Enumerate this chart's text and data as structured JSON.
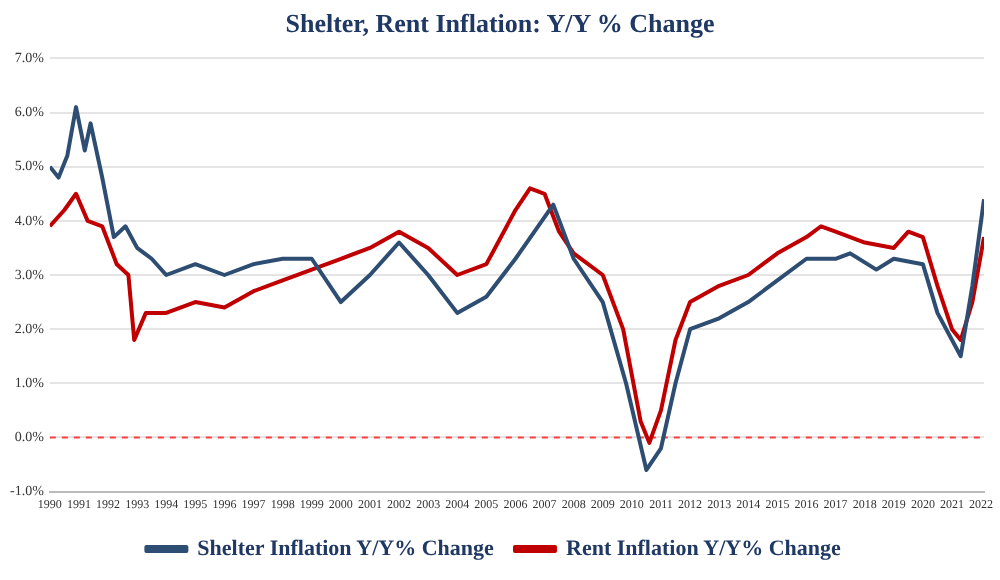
{
  "chart_data": {
    "type": "line",
    "title": "Shelter, Rent Inflation: Y/Y % Change",
    "xlim": [
      1990,
      2022.1
    ],
    "xticks": [
      1990,
      1991,
      1992,
      1993,
      1994,
      1995,
      1996,
      1997,
      1998,
      1999,
      2000,
      2001,
      2002,
      2003,
      2004,
      2005,
      2006,
      2007,
      2008,
      2009,
      2010,
      2011,
      2012,
      2013,
      2014,
      2015,
      2016,
      2017,
      2018,
      2019,
      2020,
      2021,
      2022
    ],
    "ylim": [
      -1,
      7
    ],
    "yticks": [
      {
        "value": -1,
        "label": "-1.0%"
      },
      {
        "value": 0,
        "label": "0.0%"
      },
      {
        "value": 1,
        "label": "1.0%"
      },
      {
        "value": 2,
        "label": "2.0%"
      },
      {
        "value": 3,
        "label": "3.0%"
      },
      {
        "value": 4,
        "label": "4.0%"
      },
      {
        "value": 5,
        "label": "5.0%"
      },
      {
        "value": 6,
        "label": "6.0%"
      },
      {
        "value": 7,
        "label": "7.0%"
      }
    ],
    "grid": "y",
    "legend": "bottom",
    "marker": "none",
    "line_style": "solid",
    "ref_lines": [
      {
        "axis": "y",
        "value": 0,
        "label": null,
        "color": "#ff4040",
        "line_style": "dashed"
      }
    ],
    "series": [
      {
        "name": "Shelter Inflation Y/Y% Change",
        "color": "#2e4d73",
        "x": [
          1990,
          1990.3,
          1990.6,
          1990.9,
          1991.2,
          1991.4,
          1991.8,
          1992.2,
          1992.6,
          1993,
          1993.5,
          1994,
          1995,
          1996,
          1997,
          1998,
          1999,
          2000,
          2001,
          2002,
          2003,
          2004,
          2005,
          2006,
          2007.3,
          2008,
          2009,
          2009.8,
          2010.5,
          2011,
          2011.5,
          2012,
          2013,
          2014,
          2015,
          2016,
          2017,
          2017.5,
          2018.4,
          2019,
          2020,
          2020.5,
          2021.3,
          2021.7,
          2022.1
        ],
        "values": [
          5.0,
          4.8,
          5.2,
          6.1,
          5.3,
          5.8,
          4.8,
          3.7,
          3.9,
          3.5,
          3.3,
          3.0,
          3.2,
          3.0,
          3.2,
          3.3,
          3.3,
          2.5,
          3.0,
          3.6,
          3.0,
          2.3,
          2.6,
          3.3,
          4.3,
          3.3,
          2.5,
          1.0,
          -0.6,
          -0.2,
          1.0,
          2.0,
          2.2,
          2.5,
          2.9,
          3.3,
          3.3,
          3.4,
          3.1,
          3.3,
          3.2,
          2.3,
          1.5,
          2.8,
          4.4
        ]
      },
      {
        "name": "Rent Inflation Y/Y% Change",
        "color": "#c00000",
        "x": [
          1990,
          1990.5,
          1990.9,
          1991.3,
          1991.8,
          1992.3,
          1992.7,
          1992.9,
          1993.3,
          1994,
          1995,
          1996,
          1997,
          1998,
          1999,
          2000,
          2001,
          2002,
          2003,
          2004,
          2005,
          2006,
          2006.5,
          2007,
          2007.5,
          2008,
          2009,
          2009.7,
          2010.3,
          2010.6,
          2011,
          2011.5,
          2012,
          2013,
          2014,
          2015,
          2016,
          2016.5,
          2017,
          2018,
          2019,
          2019.5,
          2020,
          2020.5,
          2021,
          2021.3,
          2021.7,
          2022.1
        ],
        "values": [
          3.9,
          4.2,
          4.5,
          4.0,
          3.9,
          3.2,
          3.0,
          1.8,
          2.3,
          2.3,
          2.5,
          2.4,
          2.7,
          2.9,
          3.1,
          3.3,
          3.5,
          3.8,
          3.5,
          3.0,
          3.2,
          4.2,
          4.6,
          4.5,
          3.8,
          3.4,
          3.0,
          2.0,
          0.3,
          -0.1,
          0.5,
          1.8,
          2.5,
          2.8,
          3.0,
          3.4,
          3.7,
          3.9,
          3.8,
          3.6,
          3.5,
          3.8,
          3.7,
          2.8,
          2.0,
          1.8,
          2.5,
          3.7
        ]
      }
    ]
  }
}
